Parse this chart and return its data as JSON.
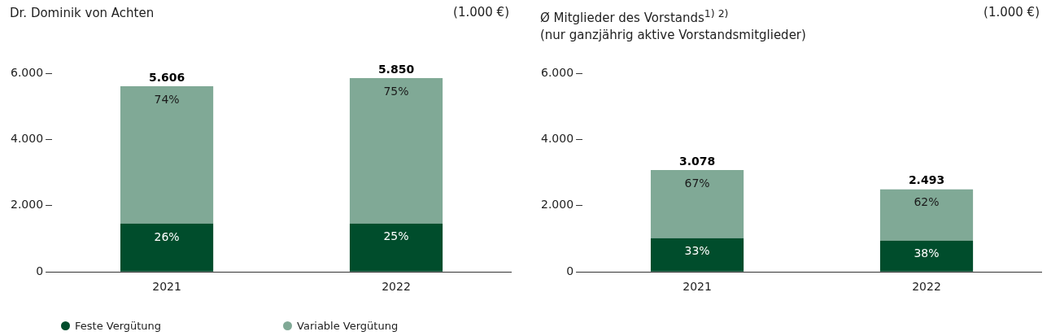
{
  "chart_data": [
    {
      "type": "bar",
      "title": "Dr. Dominik von Achten",
      "categories": [
        "2021",
        "2022"
      ],
      "stacked": true,
      "legend": "bottom left",
      "ylim": [
        0,
        6000
      ],
      "yticks": [
        {
          "value": 0,
          "label": "0"
        },
        {
          "value": 2000,
          "label": "2.000"
        },
        {
          "value": 4000,
          "label": "4.000"
        },
        {
          "value": 6000,
          "label": "6.000"
        }
      ],
      "totals": [
        "5.606",
        "5.850"
      ],
      "annotations": [
        "(1.000 €)",
        {
          "text": "26%",
          "x": "2021",
          "y": 1458
        },
        {
          "text": "25%",
          "x": "2022",
          "y": 1463
        },
        {
          "text": "74%",
          "x": "2021",
          "y": 5606
        },
        {
          "text": "75%",
          "x": "2022",
          "y": 5850
        }
      ],
      "series": [
        {
          "name": "Feste Vergütung",
          "color": "#004d2c",
          "values": [
            1458,
            1463
          ]
        },
        {
          "name": "Variable Vergütung",
          "color": "#80a996",
          "values": [
            4148,
            4387
          ]
        }
      ]
    },
    {
      "type": "bar",
      "title": "Ø Mitglieder des Vorstands$^{1) 2)}$",
      "subtitle": "(nur ganzjährig aktive Vorstandsmitglieder)",
      "categories": [
        "2021",
        "2022"
      ],
      "stacked": true,
      "ylim": [
        0,
        6000
      ],
      "yticks": [
        {
          "value": 0,
          "label": "0"
        },
        {
          "value": 2000,
          "label": "2.000"
        },
        {
          "value": 4000,
          "label": "4.000"
        },
        {
          "value": 6000,
          "label": "6.000"
        }
      ],
      "totals": [
        "3.078",
        "2.493"
      ],
      "annotations": [
        "(1.000 €)",
        {
          "text": "33%",
          "x": "2021",
          "y": 1016
        },
        {
          "text": "38%",
          "x": "2022",
          "y": 947
        },
        {
          "text": "67%",
          "x": "2021",
          "y": 3078
        },
        {
          "text": "62%",
          "x": "2022",
          "y": 2493
        }
      ],
      "series": [
        {
          "color": "#004d2c",
          "values": [
            1016,
            947
          ]
        },
        {
          "color": "#80a996",
          "values": [
            2062,
            1546
          ]
        }
      ]
    }
  ]
}
